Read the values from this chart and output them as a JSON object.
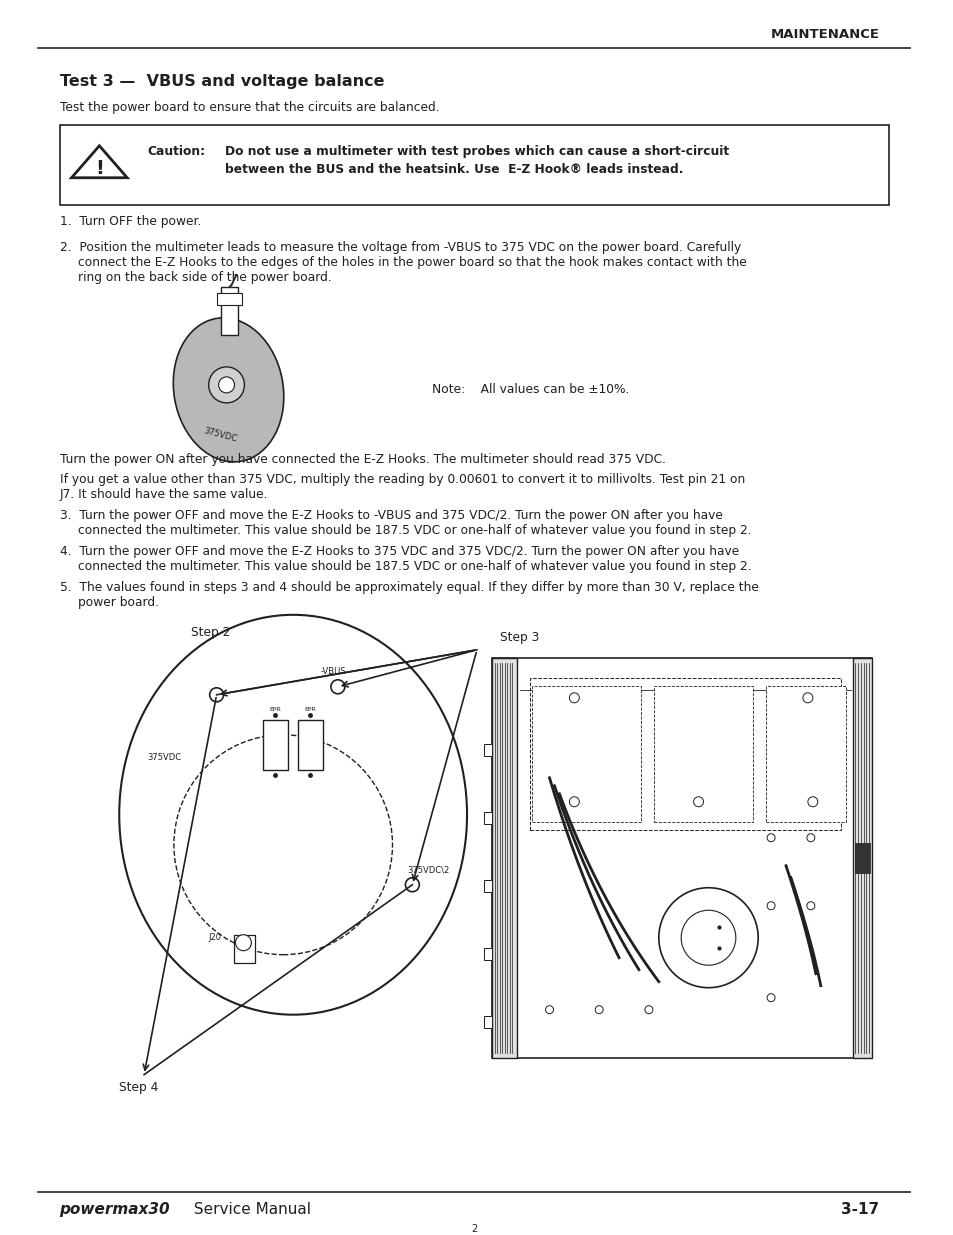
{
  "title": "MAINTENANCE",
  "section_title": "Test 3 —  VBUS and voltage balance",
  "intro_text": "Test the power board to ensure that the circuits are balanced.",
  "caution_label": "Caution:",
  "step1": "1.  Turn OFF the power.",
  "step2_line1": "2.  Position the multimeter leads to measure the voltage from -VBUS to 375 VDC on the power board. Carefully",
  "step2_line2": "connect the E-Z Hooks to the edges of the holes in the power board so that the hook makes contact with the",
  "step2_line3": "ring on the back side of the power board.",
  "note_text": "Note:    All values can be ±10%.",
  "power_on_text1": "Turn the power ON after you have connected the E-Z Hooks. The multimeter should read 375 VDC.",
  "power_on_text2_line1": "If you get a value other than 375 VDC, multiply the reading by 0.00601 to convert it to millivolts. Test pin 21 on",
  "power_on_text2_line2": "J7. It should have the same value.",
  "step3_line1": "3.  Turn the power OFF and move the E-Z Hooks to -VBUS and 375 VDC/2. Turn the power ON after you have",
  "step3_line2": "connected the multimeter. This value should be 187.5 VDC or one-half of whatever value you found in step 2.",
  "step4_line1": "4.  Turn the power OFF and move the E-Z Hooks to 375 VDC and 375 VDC/2. Turn the power ON after you have",
  "step4_line2": "connected the multimeter. This value should be 187.5 VDC or one-half of whatever value you found in step 2.",
  "step5_line1": "5.  The values found in steps 3 and 4 should be approximately equal. If they differ by more than 30 V, replace the",
  "step5_line2": "power board.",
  "footer_right": "3-17",
  "page_num": "2",
  "bg_color": "#ffffff",
  "text_color": "#231f20"
}
